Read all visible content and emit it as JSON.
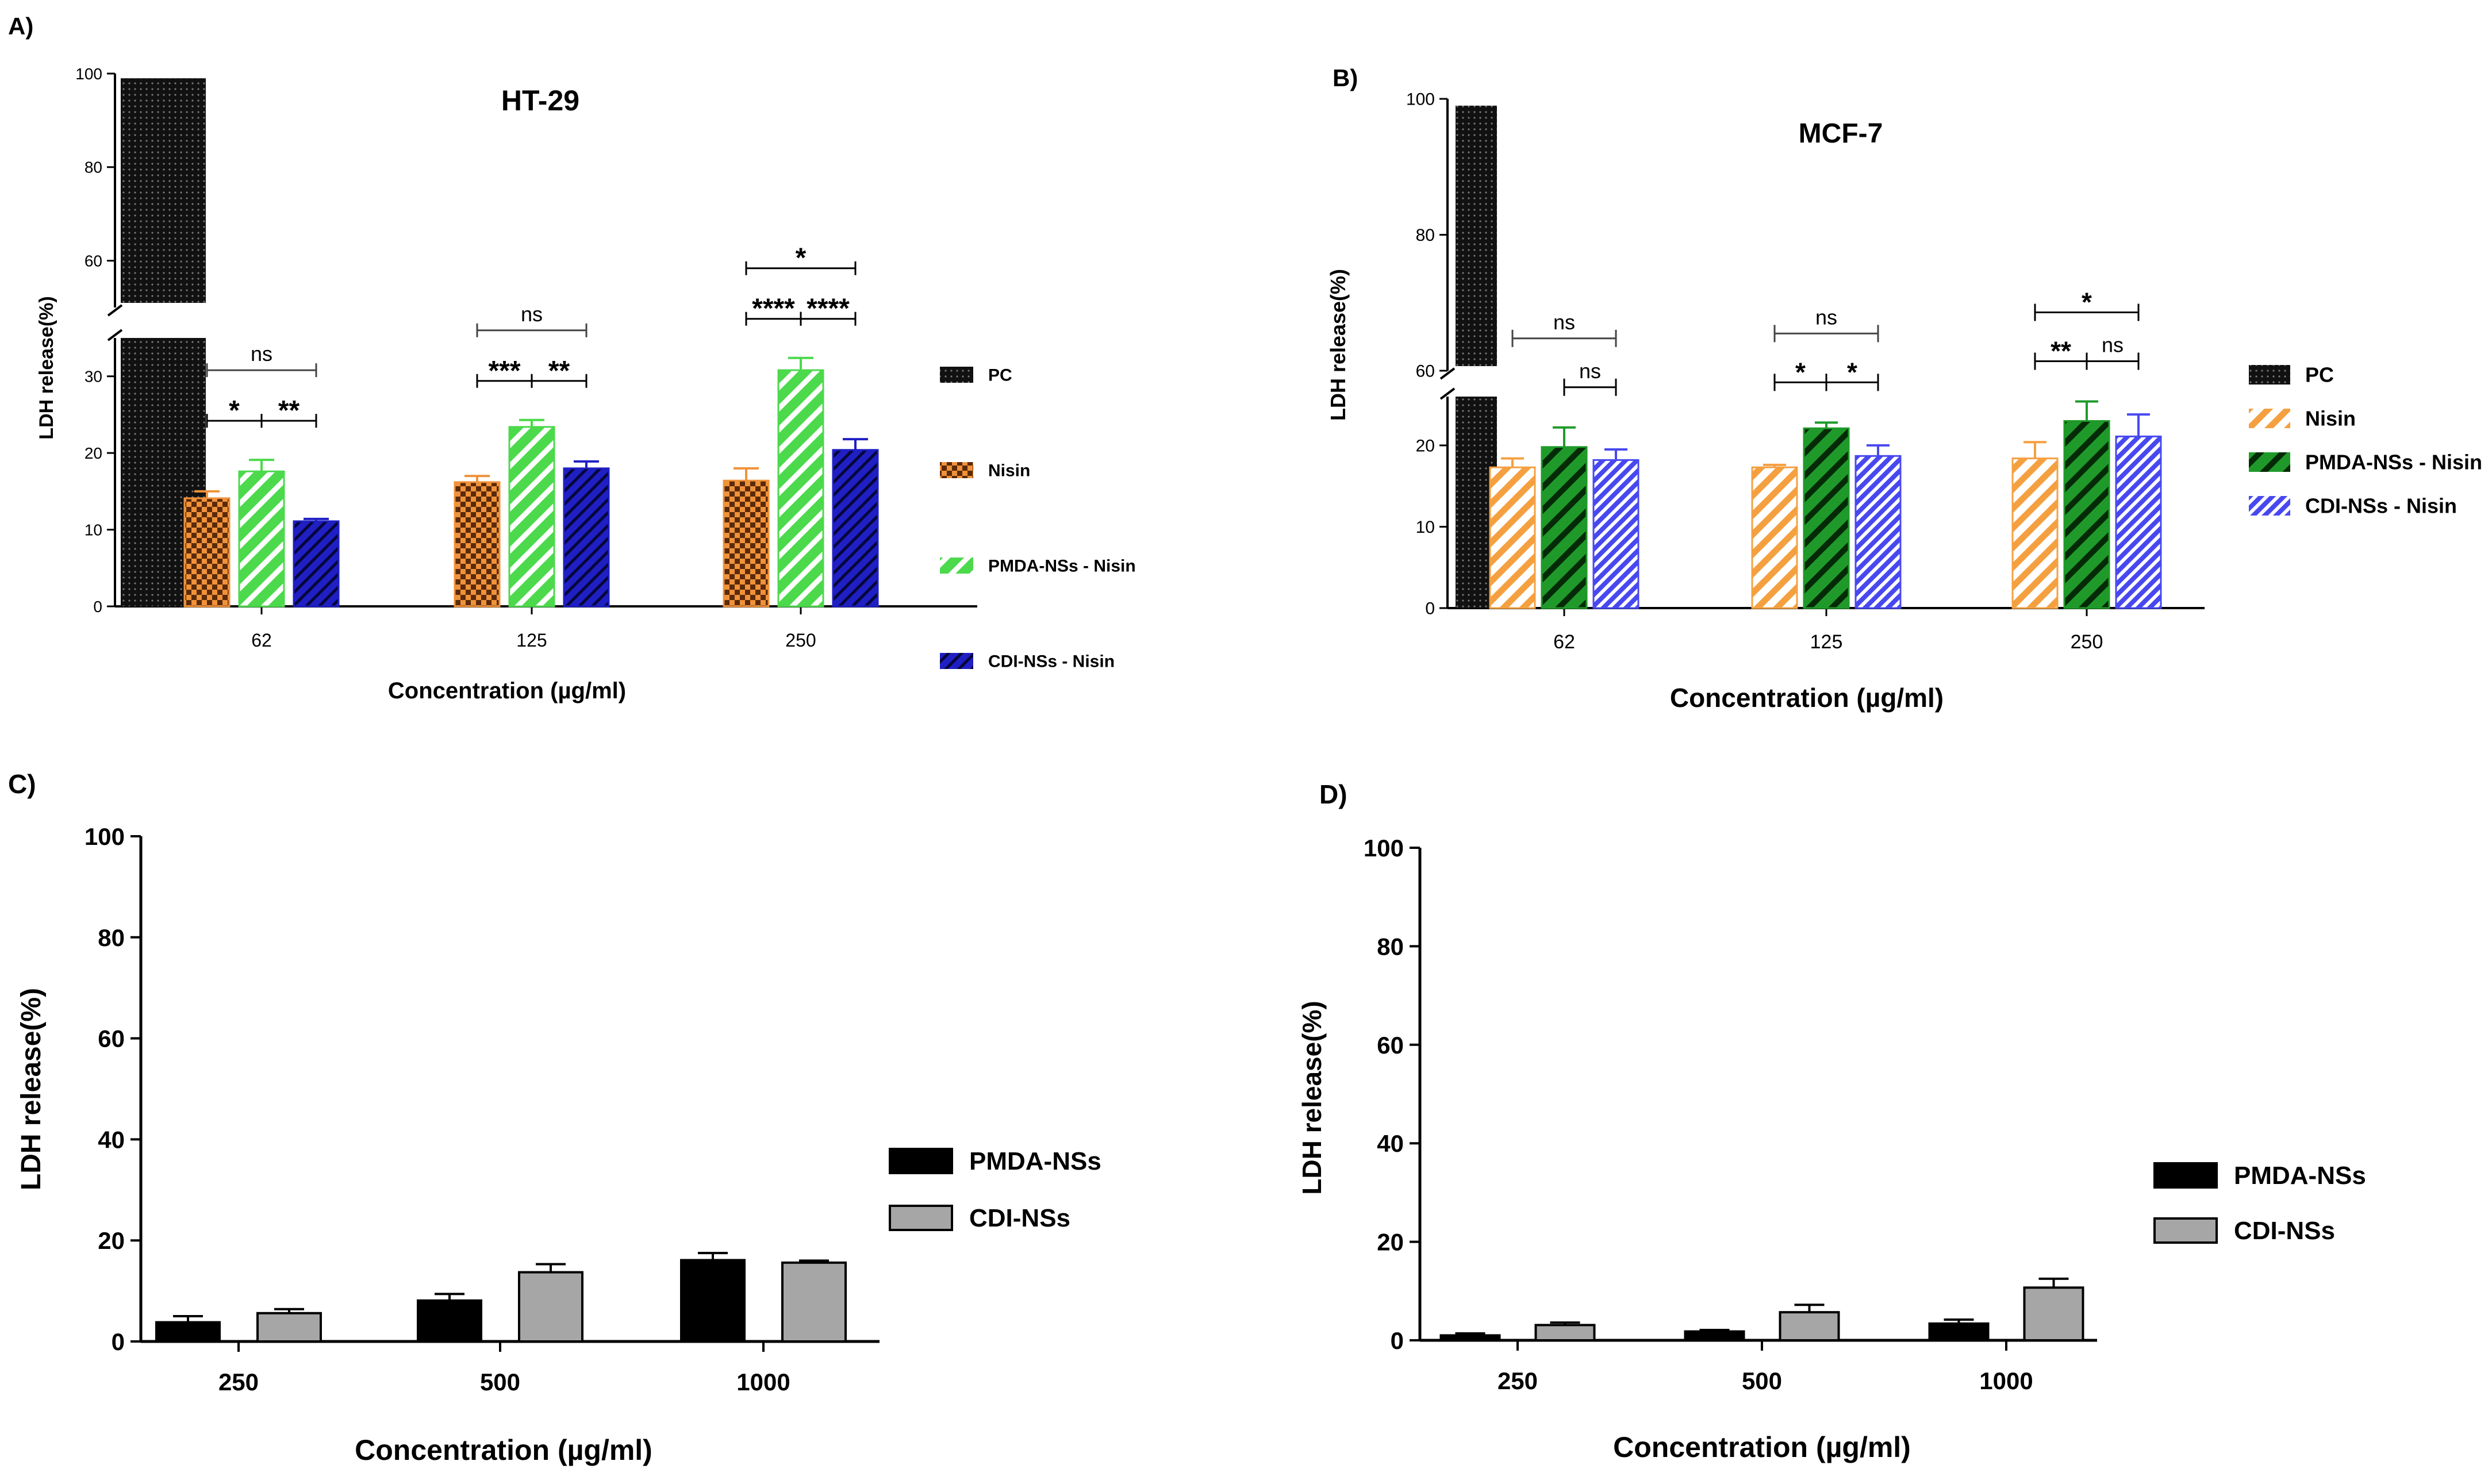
{
  "chart_data": [
    {
      "panel_label": "A)",
      "type": "bar",
      "title": "HT-29",
      "xlabel": "Concentration (µg/ml)",
      "ylabel": "LDH release(%)",
      "y_axis": "broken",
      "ylim_lower": [
        0,
        35
      ],
      "ylim_upper": [
        50,
        100
      ],
      "yticks_lower": [
        0,
        10,
        20,
        30
      ],
      "yticks_upper": [
        60,
        80,
        100
      ],
      "categories": [
        "62",
        "125",
        "250"
      ],
      "positive_control": {
        "name": "PC",
        "value": 99,
        "color": "#111111",
        "pattern": "dots"
      },
      "series": [
        {
          "name": "Nisin",
          "color": "#f0923a",
          "pattern": "checker",
          "values": [
            14.1,
            16.2,
            16.4
          ],
          "errors": [
            0.9,
            0.8,
            1.6
          ]
        },
        {
          "name": "PMDA-NSs - Nisin",
          "color": "#4cd94c",
          "pattern": "hatch",
          "values": [
            17.6,
            23.4,
            30.8
          ],
          "errors": [
            1.5,
            0.9,
            1.6
          ]
        },
        {
          "name": "CDI-NSs - Nisin",
          "color": "#1f1fc4",
          "pattern": "hatch-dark",
          "values": [
            11.1,
            18.0,
            20.4
          ],
          "errors": [
            0.3,
            0.9,
            1.4
          ]
        }
      ],
      "significance": [
        {
          "category": "62",
          "label": "ns",
          "from": 0,
          "to": 2,
          "level": 2
        },
        {
          "category": "62",
          "label": "*",
          "from": 0,
          "to": 1,
          "level": 1
        },
        {
          "category": "62",
          "label": "**",
          "from": 1,
          "to": 2,
          "level": 1
        },
        {
          "category": "125",
          "label": "ns",
          "from": 0,
          "to": 2,
          "level": 2
        },
        {
          "category": "125",
          "label": "***",
          "from": 0,
          "to": 1,
          "level": 1
        },
        {
          "category": "125",
          "label": "**",
          "from": 1,
          "to": 2,
          "level": 1
        },
        {
          "category": "250",
          "label": "*",
          "from": 0,
          "to": 2,
          "level": 2
        },
        {
          "category": "250",
          "label": "****",
          "from": 0,
          "to": 1,
          "level": 1
        },
        {
          "category": "250",
          "label": "****",
          "from": 1,
          "to": 2,
          "level": 1
        }
      ],
      "legend": [
        "PC",
        "Nisin",
        "PMDA-NSs - Nisin",
        "CDI-NSs - Nisin"
      ]
    },
    {
      "panel_label": "B)",
      "type": "bar",
      "title": "MCF-7",
      "xlabel": "Concentration (µg/ml)",
      "ylabel": "LDH release(%)",
      "y_axis": "broken",
      "ylim_lower": [
        0,
        26
      ],
      "ylim_upper": [
        60,
        100
      ],
      "yticks_lower": [
        0,
        10,
        20
      ],
      "yticks_upper": [
        60,
        80,
        100
      ],
      "categories": [
        "62",
        "125",
        "250"
      ],
      "positive_control": {
        "name": "PC",
        "value": 99,
        "color": "#111111",
        "pattern": "dots"
      },
      "series": [
        {
          "name": "Nisin",
          "color": "#f5a040",
          "pattern": "hatch-light",
          "values": [
            17.3,
            17.3,
            18.4
          ],
          "errors": [
            1.1,
            0.3,
            2.0
          ]
        },
        {
          "name": "PMDA-NSs - Nisin",
          "color": "#1f9a2a",
          "pattern": "hatch-dark",
          "values": [
            19.8,
            22.1,
            23.0
          ],
          "errors": [
            2.4,
            0.7,
            2.4
          ]
        },
        {
          "name": "CDI-NSs - Nisin",
          "color": "#4848f0",
          "pattern": "hatch-light",
          "values": [
            18.2,
            18.7,
            21.1
          ],
          "errors": [
            1.3,
            1.3,
            2.7
          ]
        }
      ],
      "significance": [
        {
          "category": "62",
          "label": "ns",
          "from": 0,
          "to": 2,
          "level": 2
        },
        {
          "category": "62",
          "label": "ns",
          "from": 1,
          "to": 2,
          "level": 1
        },
        {
          "category": "125",
          "label": "ns",
          "from": 0,
          "to": 2,
          "level": 2
        },
        {
          "category": "125",
          "label": "*",
          "from": 0,
          "to": 1,
          "level": 1
        },
        {
          "category": "125",
          "label": "*",
          "from": 1,
          "to": 2,
          "level": 1
        },
        {
          "category": "250",
          "label": "*",
          "from": 0,
          "to": 2,
          "level": 2
        },
        {
          "category": "250",
          "label": "**",
          "from": 0,
          "to": 1,
          "level": 1
        },
        {
          "category": "250",
          "label": "ns",
          "from": 1,
          "to": 2,
          "level": 1
        }
      ],
      "legend": [
        "PC",
        "Nisin",
        "PMDA-NSs - Nisin",
        "CDI-NSs - Nisin"
      ]
    },
    {
      "panel_label": "C)",
      "type": "bar",
      "title": "",
      "xlabel": "Concentration (µg/ml)",
      "ylabel": "LDH release(%)",
      "ylim": [
        0,
        100
      ],
      "yticks": [
        0,
        20,
        40,
        60,
        80,
        100
      ],
      "categories": [
        "250",
        "500",
        "1000"
      ],
      "series": [
        {
          "name": "PMDA-NSs",
          "color": "#000000",
          "values": [
            3.8,
            8.1,
            16.1
          ],
          "errors": [
            1.2,
            1.3,
            1.4
          ]
        },
        {
          "name": "CDI-NSs",
          "color": "#a6a6a6",
          "values": [
            5.6,
            13.7,
            15.6
          ],
          "errors": [
            0.8,
            1.6,
            0.4
          ]
        }
      ],
      "legend": [
        "PMDA-NSs",
        "CDI-NSs"
      ]
    },
    {
      "panel_label": "D)",
      "type": "bar",
      "title": "",
      "xlabel": "Concentration (µg/ml)",
      "ylabel": "LDH release(%)",
      "ylim": [
        0,
        100
      ],
      "yticks": [
        0,
        20,
        40,
        60,
        80,
        100
      ],
      "categories": [
        "250",
        "500",
        "1000"
      ],
      "series": [
        {
          "name": "PMDA-NSs",
          "color": "#000000",
          "values": [
            1.0,
            1.8,
            3.4
          ],
          "errors": [
            0.4,
            0.3,
            0.8
          ]
        },
        {
          "name": "CDI-NSs",
          "color": "#a6a6a6",
          "values": [
            3.1,
            5.7,
            10.7
          ],
          "errors": [
            0.5,
            1.5,
            1.8
          ]
        }
      ],
      "legend": [
        "PMDA-NSs",
        "CDI-NSs"
      ]
    }
  ]
}
